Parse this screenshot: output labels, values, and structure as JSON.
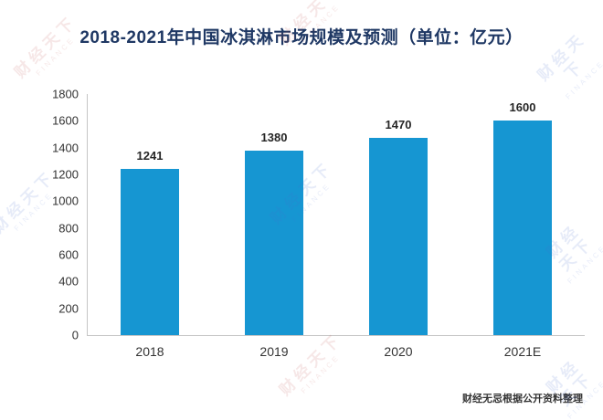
{
  "title": "2018-2021年中国冰淇淋市场规模及预测（单位：亿元）",
  "footer": "财经无忌根据公开资料整理",
  "watermark": {
    "text": "财经天下",
    "subtext": "FINANCE"
  },
  "colors": {
    "title": "#1f3864",
    "bar": "#1696d2",
    "axis": "#c6c6c6",
    "tick_label": "#333333",
    "value_label": "#262626"
  },
  "chart_data": {
    "type": "bar",
    "categories": [
      "2018",
      "2019",
      "2020",
      "2021E"
    ],
    "values": [
      1241,
      1380,
      1470,
      1600
    ],
    "title": "2018-2021年中国冰淇淋市场规模及预测（单位：亿元）",
    "xlabel": "",
    "ylabel": "",
    "ylim": [
      0,
      1800
    ],
    "ytick_step": 200,
    "grid": false,
    "legend": false,
    "value_labels": true,
    "bar_color": "#1696d2"
  }
}
